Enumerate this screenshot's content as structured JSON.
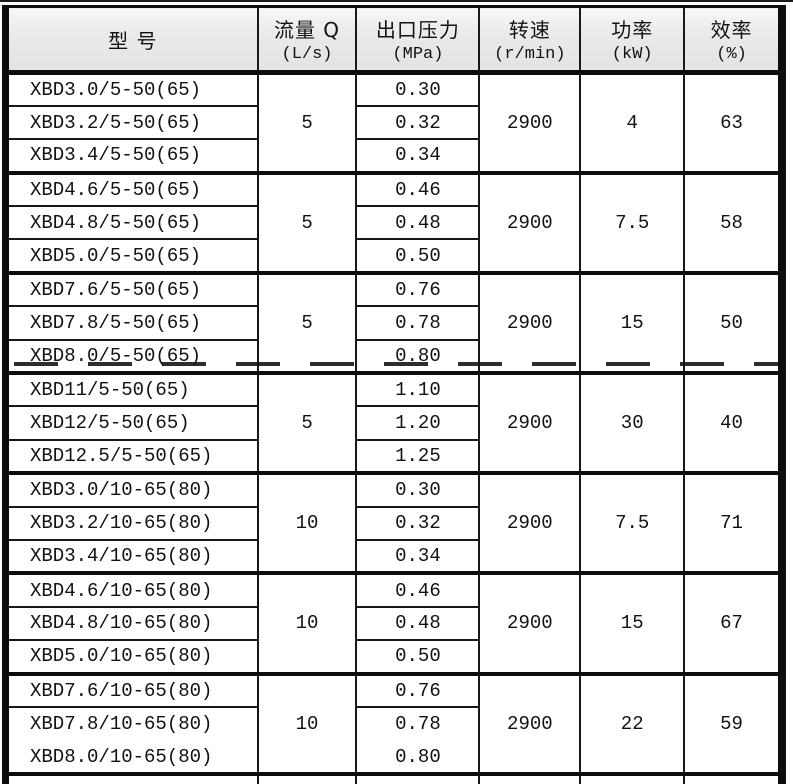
{
  "colors": {
    "page_bg": "#ffffff",
    "border": "#0d0d0d",
    "header_bg": "#ececec",
    "text": "#121212"
  },
  "table": {
    "columns": [
      {
        "line1": "型  号",
        "line2": ""
      },
      {
        "line1": "流量 Q",
        "line2": "(L/s)"
      },
      {
        "line1": "出口压力",
        "line2": "(MPa)"
      },
      {
        "line1": "转速",
        "line2": "(r/min)"
      },
      {
        "line1": "功率",
        "line2": "(kW)"
      },
      {
        "line1": "效率",
        "line2": "(%)"
      }
    ],
    "groups": [
      {
        "flow": "5",
        "speed": "2900",
        "power": "4",
        "efficiency": "63",
        "rows": [
          {
            "model": "XBD3.0/5-50(65)",
            "pressure": "0.30"
          },
          {
            "model": "XBD3.2/5-50(65)",
            "pressure": "0.32"
          },
          {
            "model": "XBD3.4/5-50(65)",
            "pressure": "0.34"
          }
        ]
      },
      {
        "flow": "5",
        "speed": "2900",
        "power": "7.5",
        "efficiency": "58",
        "rows": [
          {
            "model": "XBD4.6/5-50(65)",
            "pressure": "0.46"
          },
          {
            "model": "XBD4.8/5-50(65)",
            "pressure": "0.48"
          },
          {
            "model": "XBD5.0/5-50(65)",
            "pressure": "0.50"
          }
        ]
      },
      {
        "flow": "5",
        "speed": "2900",
        "power": "15",
        "efficiency": "50",
        "rows": [
          {
            "model": "XBD7.6/5-50(65)",
            "pressure": "0.76"
          },
          {
            "model": "XBD7.8/5-50(65)",
            "pressure": "0.78"
          },
          {
            "model": "XBD8.0/5-50(65)",
            "pressure": "0.80"
          }
        ]
      },
      {
        "flow": "5",
        "speed": "2900",
        "power": "30",
        "efficiency": "40",
        "rows": [
          {
            "model": "XBD11/5-50(65)",
            "pressure": "1.10"
          },
          {
            "model": "XBD12/5-50(65)",
            "pressure": "1.20"
          },
          {
            "model": "XBD12.5/5-50(65)",
            "pressure": "1.25"
          }
        ]
      },
      {
        "flow": "10",
        "speed": "2900",
        "power": "7.5",
        "efficiency": "71",
        "rows": [
          {
            "model": "XBD3.0/10-65(80)",
            "pressure": "0.30"
          },
          {
            "model": "XBD3.2/10-65(80)",
            "pressure": "0.32"
          },
          {
            "model": "XBD3.4/10-65(80)",
            "pressure": "0.34"
          }
        ]
      },
      {
        "flow": "10",
        "speed": "2900",
        "power": "15",
        "efficiency": "67",
        "rows": [
          {
            "model": "XBD4.6/10-65(80)",
            "pressure": "0.46"
          },
          {
            "model": "XBD4.8/10-65(80)",
            "pressure": "0.48"
          },
          {
            "model": "XBD5.0/10-65(80)",
            "pressure": "0.50"
          }
        ]
      },
      {
        "flow": "10",
        "speed": "2900",
        "power": "22",
        "efficiency": "59",
        "rows": [
          {
            "model": "XBD7.6/10-65(80)",
            "pressure": "0.76"
          },
          {
            "model": "XBD7.8/10-65(80)",
            "pressure": "0.78"
          },
          {
            "model": "XBD8.0/10-65(80)",
            "pressure": "0.80"
          }
        ]
      }
    ]
  }
}
